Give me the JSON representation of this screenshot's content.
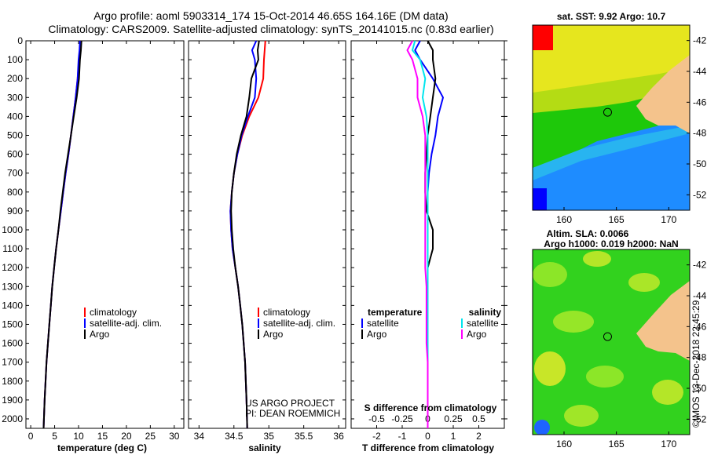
{
  "title_line1": "Argo profile: aoml 5903314_174 15-Oct-2014 46.65S 164.16E (DM data)",
  "title_line2": "Climatology: CARS2009. Satellite-adjusted climatology: synTS_20141015.nc (0.83d earlier)",
  "credit_line1": "US ARGO PROJECT",
  "credit_line2": "PI: DEAN ROEMMICH",
  "timestamp": "©IMOS 13-Dec-2018 22:45:29",
  "colors": {
    "climatology": "#ff0000",
    "satellite_adj": "#0000ff",
    "argo": "#000000",
    "sal_satellite": "#00e5ee",
    "sal_argo": "#ff00ff"
  },
  "chart_data": [
    {
      "type": "line",
      "xlabel": "temperature (deg C)",
      "ylabel": "",
      "xlim": [
        -1,
        32
      ],
      "ylim": [
        0,
        2050
      ],
      "xticks": [
        0,
        5,
        10,
        15,
        20,
        25,
        30
      ],
      "yticks": [
        0,
        100,
        200,
        300,
        400,
        500,
        600,
        700,
        800,
        900,
        1000,
        1100,
        1200,
        1300,
        1400,
        1500,
        1600,
        1700,
        1800,
        1900,
        2000
      ],
      "legend": [
        "climatology",
        "satellite-adj. clim.",
        "Argo"
      ],
      "series": [
        {
          "name": "climatology",
          "color": "#ff0000",
          "x": [
            10.6,
            10.3,
            10.1,
            9.8,
            9.4,
            8.9,
            8.4,
            7.9,
            7.3,
            6.8,
            6.3,
            5.8,
            5.3,
            4.9,
            4.5,
            4.2,
            3.9,
            3.6,
            3.3,
            3.1,
            2.9,
            2.7
          ],
          "y": [
            0,
            50,
            100,
            200,
            300,
            400,
            500,
            600,
            700,
            800,
            900,
            1000,
            1100,
            1200,
            1300,
            1400,
            1500,
            1600,
            1700,
            1800,
            1900,
            2050
          ]
        },
        {
          "name": "satellite-adj. clim.",
          "color": "#0000ff",
          "x": [
            10.3,
            10.2,
            10.0,
            9.8,
            9.4,
            8.9,
            8.4,
            7.9,
            7.3,
            6.8,
            6.3,
            5.8,
            5.3,
            4.9,
            4.5,
            4.2,
            3.9,
            3.6,
            3.3,
            3.1,
            2.9,
            2.7
          ],
          "y": [
            0,
            50,
            100,
            200,
            300,
            400,
            500,
            600,
            700,
            800,
            900,
            1000,
            1100,
            1200,
            1300,
            1400,
            1500,
            1600,
            1700,
            1800,
            1900,
            2050
          ]
        },
        {
          "name": "Argo",
          "color": "#000000",
          "x": [
            10.6,
            10.5,
            10.3,
            10.1,
            9.6,
            9.0,
            8.4,
            7.8,
            7.2,
            6.7,
            6.2,
            5.8,
            5.3,
            4.9,
            4.5,
            4.2,
            3.9,
            3.6,
            3.3,
            3.1,
            2.9,
            2.7
          ],
          "y": [
            0,
            50,
            100,
            200,
            300,
            400,
            500,
            600,
            700,
            800,
            900,
            1000,
            1100,
            1200,
            1300,
            1400,
            1500,
            1600,
            1700,
            1800,
            1900,
            2050
          ]
        }
      ]
    },
    {
      "type": "line",
      "xlabel": "salinity",
      "xlim": [
        33.85,
        36.1
      ],
      "ylim": [
        0,
        2050
      ],
      "xticks": [
        34,
        34.5,
        35,
        35.5,
        36
      ],
      "xticklabels": [
        "34",
        "34.5",
        "35",
        "35.5",
        "36"
      ],
      "legend": [
        "climatology",
        "satellite-adj. clim.",
        "Argo"
      ],
      "series": [
        {
          "name": "climatology",
          "color": "#ff0000",
          "x": [
            34.95,
            34.94,
            34.93,
            34.92,
            34.85,
            34.72,
            34.62,
            34.55,
            34.5,
            34.47,
            34.45,
            34.46,
            34.48,
            34.52,
            34.56,
            34.59,
            34.62,
            34.64,
            34.66,
            34.67,
            34.68,
            34.69
          ],
          "y": [
            0,
            50,
            100,
            200,
            300,
            400,
            500,
            600,
            700,
            800,
            900,
            1000,
            1100,
            1200,
            1300,
            1400,
            1500,
            1600,
            1700,
            1800,
            1900,
            2050
          ]
        },
        {
          "name": "satellite-adj. clim.",
          "color": "#0000ff",
          "x": [
            34.82,
            34.76,
            34.8,
            34.82,
            34.8,
            34.7,
            34.61,
            34.55,
            34.5,
            34.47,
            34.45,
            34.46,
            34.48,
            34.52,
            34.56,
            34.59,
            34.62,
            34.64,
            34.66,
            34.67,
            34.68,
            34.69
          ],
          "y": [
            0,
            50,
            100,
            200,
            300,
            400,
            500,
            600,
            700,
            800,
            900,
            1000,
            1100,
            1200,
            1300,
            1400,
            1500,
            1600,
            1700,
            1800,
            1900,
            2050
          ]
        },
        {
          "name": "Argo",
          "color": "#000000",
          "x": [
            34.86,
            34.84,
            34.85,
            34.75,
            34.72,
            34.68,
            34.6,
            34.54,
            34.5,
            34.47,
            34.46,
            34.47,
            34.49,
            34.52,
            34.56,
            34.59,
            34.62,
            34.64,
            34.66,
            34.67,
            34.68,
            34.69
          ],
          "y": [
            0,
            50,
            100,
            200,
            300,
            400,
            500,
            600,
            700,
            800,
            900,
            1000,
            1100,
            1200,
            1300,
            1400,
            1500,
            1600,
            1700,
            1800,
            1900,
            2050
          ]
        }
      ]
    },
    {
      "type": "line",
      "xlabel": "T difference from climatology",
      "secondary_xlabel": "S difference from climatology",
      "xlim": [
        -3,
        3
      ],
      "ylim": [
        0,
        2050
      ],
      "xticks": [
        -2,
        -1,
        0,
        1,
        2
      ],
      "secondary_xticklabels": [
        "-0.5",
        "-0.25",
        "0",
        "0.25",
        "0.5"
      ],
      "legend_temperature_title": "temperature",
      "legend_salinity_title": "salinity",
      "legend_temperature": [
        "satellite",
        "Argo"
      ],
      "legend_salinity": [
        "satellite",
        "Argo"
      ],
      "series": [
        {
          "name": "satellite",
          "color": "#0000ff",
          "x": [
            -0.3,
            -0.5,
            -0.3,
            0.2,
            0.6,
            0.4,
            0.3,
            0.15,
            0.05,
            0.0,
            0.0,
            0.0,
            0.0,
            0.0,
            0.0,
            0.0,
            0.0,
            0.0,
            0.0,
            0.0,
            0.0
          ],
          "y": [
            0,
            50,
            100,
            200,
            300,
            400,
            500,
            600,
            700,
            800,
            900,
            1000,
            1100,
            1200,
            1300,
            1400,
            1500,
            1600,
            1700,
            1800,
            2050
          ]
        },
        {
          "name": "Argo",
          "color": "#000000",
          "x": [
            0.0,
            0.2,
            0.2,
            0.3,
            0.2,
            0.1,
            0.0,
            -0.05,
            -0.1,
            -0.1,
            -0.05,
            0.2,
            0.2,
            0.0,
            0.0,
            0.0,
            0.0,
            0.0,
            0.0,
            0.0,
            0.0
          ],
          "y": [
            0,
            50,
            100,
            200,
            300,
            400,
            500,
            600,
            700,
            800,
            900,
            1000,
            1100,
            1200,
            1300,
            1400,
            1500,
            1600,
            1700,
            1800,
            2050
          ]
        },
        {
          "name": "satellite",
          "color": "#00e5ee",
          "x": [
            -0.5,
            -0.6,
            -0.3,
            -0.1,
            -0.2,
            -0.05,
            0.0,
            0.0,
            0.0,
            0.0,
            0.0,
            0.0,
            0.0,
            0.0,
            0.0,
            0.0,
            0.0,
            0.0,
            0.0,
            0.0,
            0.0
          ],
          "y": [
            0,
            50,
            100,
            200,
            300,
            400,
            500,
            600,
            700,
            800,
            900,
            1000,
            1100,
            1200,
            1300,
            1400,
            1500,
            1600,
            1700,
            1800,
            2050
          ]
        },
        {
          "name": "Argo",
          "color": "#ff00ff",
          "x": [
            -0.6,
            -0.8,
            -0.6,
            -0.4,
            -0.4,
            -0.2,
            -0.1,
            -0.1,
            -0.1,
            -0.1,
            -0.1,
            -0.1,
            -0.1,
            -0.1,
            -0.05,
            -0.05,
            -0.05,
            -0.05,
            0.0,
            0.0,
            0.0
          ],
          "y": [
            0,
            50,
            100,
            200,
            300,
            400,
            500,
            600,
            700,
            800,
            900,
            1000,
            1100,
            1200,
            1300,
            1400,
            1500,
            1600,
            1700,
            1800,
            2050
          ]
        }
      ]
    },
    {
      "type": "heatmap",
      "title": "sat. SST: 9.92 Argo: 10.7",
      "xlim": [
        157,
        172
      ],
      "ylim": [
        -53,
        -41
      ],
      "xticks": [
        160,
        165,
        170
      ],
      "yticks": [
        -42,
        -44,
        -46,
        -48,
        -50,
        -52
      ],
      "argo_position": [
        164.16,
        -46.65
      ]
    },
    {
      "type": "heatmap",
      "title": "Altim. SLA: 0.0066",
      "subtitle": "Argo h1000: 0.019 h2000: NaN",
      "xlim": [
        157,
        172
      ],
      "ylim": [
        -53,
        -41
      ],
      "xticks": [
        160,
        165,
        170
      ],
      "yticks": [
        -42,
        -44,
        -46,
        -48,
        -50,
        -52
      ],
      "argo_position": [
        164.16,
        -46.65
      ]
    }
  ]
}
